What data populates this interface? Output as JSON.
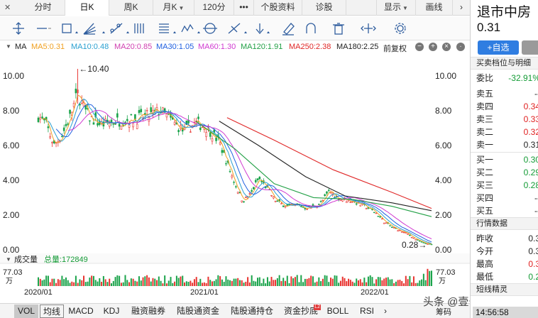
{
  "tabs": [
    {
      "label": "分时"
    },
    {
      "label": "日K"
    },
    {
      "label": "周K"
    },
    {
      "label": "月K"
    },
    {
      "label": "120分"
    },
    {
      "label": "•••"
    },
    {
      "label": "个股资料"
    },
    {
      "label": "诊股"
    },
    {
      "label": "显示"
    },
    {
      "label": "画线"
    }
  ],
  "ma_bar": {
    "title": "MA",
    "items": [
      {
        "label": "MA5:0.31",
        "color": "#f0a020"
      },
      {
        "label": "MA10:0.48",
        "color": "#2aa0d0"
      },
      {
        "label": "MA20:0.85",
        "color": "#d040b0"
      },
      {
        "label": "MA30:1.05",
        "color": "#2060e0"
      },
      {
        "label": "MA60:1.30",
        "color": "#d03ad0"
      },
      {
        "label": "MA120:1.91",
        "color": "#22a046"
      },
      {
        "label": "MA250:2.38",
        "color": "#e02828"
      },
      {
        "label": "MA180:2.25",
        "color": "#222222"
      }
    ],
    "adjust": "前复权"
  },
  "price_axis": {
    "left": [
      "10.00",
      "8.00",
      "6.00",
      "4.00",
      "2.00",
      "0.00"
    ],
    "right": [
      "10.00",
      "8.00",
      "6.00",
      "4.00",
      "2.00",
      "0.00"
    ]
  },
  "annotations": {
    "high": "←10.40",
    "low": "0.28→"
  },
  "volume": {
    "title": "成交量",
    "total": "总量:172849",
    "axis_top": "77.03",
    "axis_unit": "万"
  },
  "dates": [
    "2020/01",
    "2021/01",
    "2022/01"
  ],
  "indicator_tabs": [
    "VOL",
    "均线",
    "MACD",
    "KDJ",
    "融资融券",
    "陆股通资金",
    "陆股通持仓",
    "资金抄底",
    "BOLL",
    "RSI"
  ],
  "side": {
    "name": "退市中房",
    "price": "0.31",
    "add_label": "+自选",
    "orderbook_title": "买卖档位与明细",
    "ratio_label": "委比",
    "ratio_value": "-32.91%",
    "sells": [
      {
        "label": "卖五",
        "price": "--"
      },
      {
        "label": "卖四",
        "price": "0.34"
      },
      {
        "label": "卖三",
        "price": "0.33"
      },
      {
        "label": "卖二",
        "price": "0.32"
      },
      {
        "label": "卖一",
        "price": "0.31"
      }
    ],
    "buys": [
      {
        "label": "买一",
        "price": "0.30"
      },
      {
        "label": "买二",
        "price": "0.29"
      },
      {
        "label": "买三",
        "price": "0.28"
      },
      {
        "label": "买四",
        "price": "--"
      },
      {
        "label": "买五",
        "price": "--"
      }
    ],
    "quote_title": "行情数据",
    "quotes": [
      {
        "label": "昨收",
        "value": "0.3"
      },
      {
        "label": "今开",
        "value": "0.3"
      },
      {
        "label": "最高",
        "value": "0.3"
      },
      {
        "label": "最低",
        "value": "0.2"
      }
    ],
    "short_title": "短线精灵",
    "time": "14:56:58"
  },
  "watermark": {
    "line1": "头条 @壹号股权",
    "line2": "筹码"
  },
  "chart_data": {
    "type": "candlestick",
    "y_range": [
      0,
      10.4
    ],
    "x_labels": [
      "2020/01",
      "2021/01",
      "2022/01"
    ],
    "high_mark": 10.4,
    "low_mark": 0.28,
    "close_path": [
      [
        0,
        7.7
      ],
      [
        0.02,
        7.2
      ],
      [
        0.04,
        6.0
      ],
      [
        0.06,
        6.6
      ],
      [
        0.08,
        7.6
      ],
      [
        0.1,
        9.0
      ],
      [
        0.115,
        8.2
      ],
      [
        0.13,
        7.6
      ],
      [
        0.16,
        7.2
      ],
      [
        0.2,
        7.4
      ],
      [
        0.24,
        7.5
      ],
      [
        0.28,
        7.7
      ],
      [
        0.31,
        8.0
      ],
      [
        0.34,
        7.4
      ],
      [
        0.37,
        6.8
      ],
      [
        0.4,
        7.3
      ],
      [
        0.43,
        7.0
      ],
      [
        0.46,
        6.2
      ],
      [
        0.48,
        5.0
      ],
      [
        0.5,
        3.8
      ],
      [
        0.52,
        2.8
      ],
      [
        0.54,
        3.2
      ],
      [
        0.56,
        4.1
      ],
      [
        0.58,
        3.6
      ],
      [
        0.6,
        2.9
      ],
      [
        0.62,
        2.6
      ],
      [
        0.64,
        2.5
      ],
      [
        0.66,
        2.6
      ],
      [
        0.68,
        2.4
      ],
      [
        0.7,
        2.5
      ],
      [
        0.72,
        2.7
      ],
      [
        0.74,
        3.4
      ],
      [
        0.76,
        3.0
      ],
      [
        0.78,
        2.9
      ],
      [
        0.8,
        2.8
      ],
      [
        0.82,
        2.6
      ],
      [
        0.84,
        2.4
      ],
      [
        0.86,
        2.1
      ],
      [
        0.88,
        1.6
      ],
      [
        0.9,
        1.3
      ],
      [
        0.92,
        1.1
      ],
      [
        0.94,
        0.9
      ],
      [
        0.96,
        0.6
      ],
      [
        0.98,
        0.4
      ],
      [
        1.0,
        0.31
      ]
    ],
    "ma_lines": [
      {
        "name": "MA250",
        "color": "#e02828",
        "points": [
          [
            0.48,
            7.6
          ],
          [
            0.6,
            6.3
          ],
          [
            0.75,
            4.6
          ],
          [
            0.9,
            3.3
          ],
          [
            1.0,
            2.38
          ]
        ]
      },
      {
        "name": "MA180",
        "color": "#222222",
        "points": [
          [
            0.46,
            7.4
          ],
          [
            0.56,
            6.0
          ],
          [
            0.68,
            4.2
          ],
          [
            0.78,
            3.1
          ],
          [
            0.9,
            2.7
          ],
          [
            1.0,
            2.25
          ]
        ]
      },
      {
        "name": "MA120",
        "color": "#22a046",
        "points": [
          [
            0.4,
            7.4
          ],
          [
            0.5,
            5.8
          ],
          [
            0.6,
            3.8
          ],
          [
            0.7,
            3.0
          ],
          [
            0.8,
            2.9
          ],
          [
            0.9,
            2.5
          ],
          [
            1.0,
            1.91
          ]
        ]
      }
    ]
  }
}
